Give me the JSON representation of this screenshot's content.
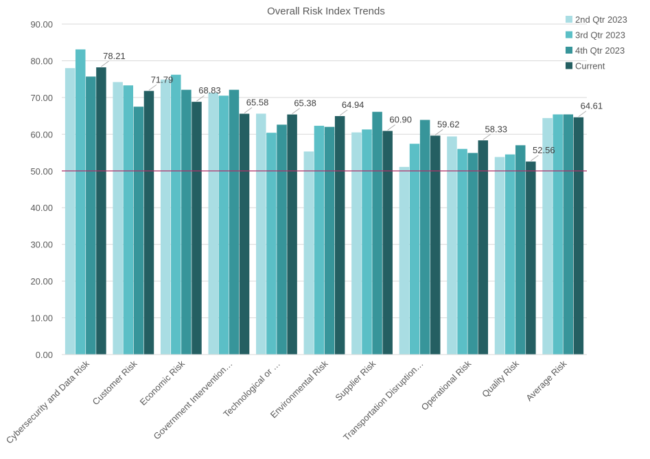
{
  "chart_data": {
    "type": "bar",
    "title": "Overall Risk Index Trends",
    "xlabel": "",
    "ylabel": "",
    "ylim": [
      0,
      90
    ],
    "yticks": [
      "0.00",
      "10.00",
      "20.00",
      "30.00",
      "40.00",
      "50.00",
      "60.00",
      "70.00",
      "80.00",
      "90.00"
    ],
    "grid": true,
    "legend_position": "top-right",
    "reference_line": {
      "value": 50,
      "color": "#b0306a"
    },
    "categories": [
      "Cybersecurity and Data Risk",
      "Customer Risk",
      "Economic Risk",
      "Government Intervention…",
      "Technological or …",
      "Environmental Risk",
      "Supplier Risk",
      "Transportation Disruption…",
      "Operational Risk",
      "Quality Risk",
      "Average Risk"
    ],
    "series": [
      {
        "name": "2nd Qtr 2023",
        "color": "#a9dde3",
        "values": [
          78.0,
          74.2,
          74.9,
          71.3,
          65.6,
          55.3,
          60.5,
          51.1,
          59.4,
          53.8,
          64.4
        ]
      },
      {
        "name": "3rd Qtr 2023",
        "color": "#5bbfc6",
        "values": [
          83.1,
          73.3,
          76.2,
          70.5,
          60.4,
          62.3,
          61.3,
          57.4,
          56.0,
          54.5,
          65.4
        ]
      },
      {
        "name": "4th Qtr 2023",
        "color": "#37959a",
        "values": [
          75.7,
          67.5,
          72.1,
          72.1,
          62.6,
          62.0,
          66.1,
          63.9,
          54.9,
          57.0,
          65.4
        ]
      },
      {
        "name": "Current",
        "color": "#245f62",
        "values": [
          78.21,
          71.79,
          68.83,
          65.58,
          65.38,
          64.94,
          60.9,
          59.62,
          58.33,
          52.56,
          64.61
        ]
      }
    ],
    "data_labels": {
      "series": "Current",
      "labels": [
        "78.21",
        "71.79",
        "68.83",
        "65.58",
        "65.38",
        "64.94",
        "60.90",
        "59.62",
        "58.33",
        "52.56",
        "64.61"
      ]
    }
  }
}
